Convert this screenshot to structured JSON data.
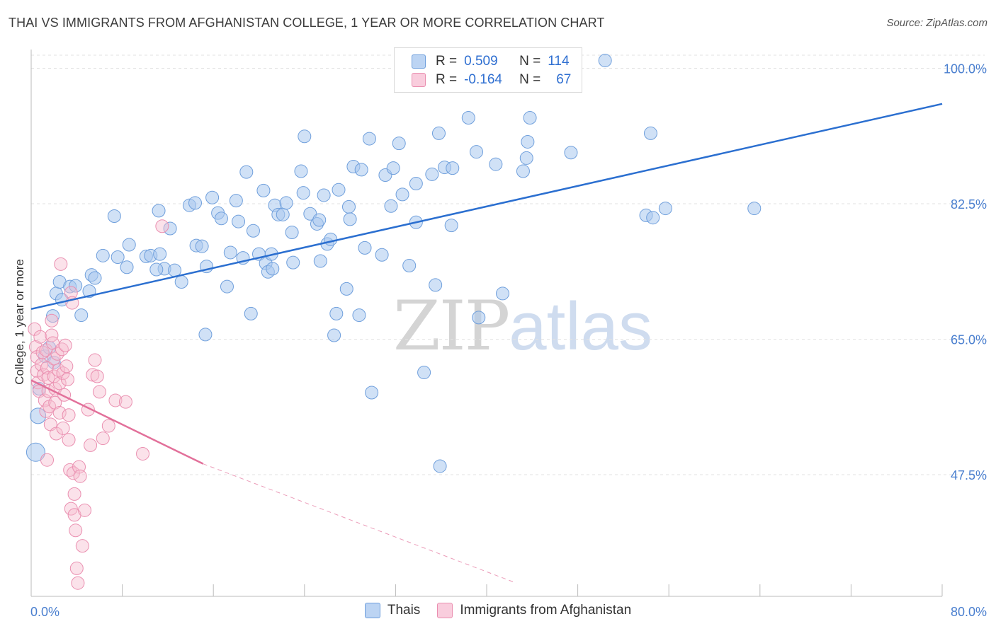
{
  "title": "THAI VS IMMIGRANTS FROM AFGHANISTAN COLLEGE, 1 YEAR OR MORE CORRELATION CHART",
  "source": "Source: ZipAtlas.com",
  "watermark": {
    "zip": "ZIP",
    "atlas": "atlas"
  },
  "legend_top": [
    {
      "r_label": "R =",
      "r_value": "0.509",
      "n_label": "N =",
      "n_value": "114"
    },
    {
      "r_label": "R =",
      "r_value": "-0.164",
      "n_label": "N =",
      "n_value": "67"
    }
  ],
  "legend_bottom": [
    "Thais",
    "Immigrants from Afghanistan"
  ],
  "colors": {
    "blue_fill": "#aac8ef",
    "blue_stroke": "#6f9fdc",
    "blue_line": "#2b6fd0",
    "pink_fill": "#f6bfd1",
    "pink_stroke": "#ea8fb0",
    "pink_line": "#e2709a",
    "tick_text": "#4a7fcf",
    "grid": "#e2e2e2"
  },
  "chart_data": {
    "type": "scatter",
    "title": "THAI VS IMMIGRANTS FROM AFGHANISTAN COLLEGE, 1 YEAR OR MORE CORRELATION CHART",
    "xlabel": "",
    "ylabel": "College, 1 year or more",
    "xlim": [
      0,
      80
    ],
    "ylim": [
      33.5,
      101.5
    ],
    "x_tick_labels": [
      "0.0%",
      "80.0%"
    ],
    "y_ticks": [
      47.5,
      65.0,
      82.5,
      100.0
    ],
    "y_tick_labels": [
      "47.5%",
      "65.0%",
      "82.5%",
      "100.0%"
    ],
    "grid": true,
    "series": [
      {
        "name": "Thais",
        "r": 0.509,
        "n": 114,
        "trend": {
          "x": [
            0,
            80
          ],
          "y": [
            68.9,
            95.4
          ],
          "style": "solid"
        },
        "points": [
          [
            0.4,
            50.4,
            13
          ],
          [
            0.6,
            55.1,
            11
          ],
          [
            0.7,
            58.6,
            9
          ],
          [
            1.2,
            62.8,
            9
          ],
          [
            1.6,
            63.9,
            9
          ],
          [
            2.0,
            62.0,
            9
          ],
          [
            1.9,
            68.0,
            9
          ],
          [
            2.2,
            70.9,
            9
          ],
          [
            2.5,
            72.4,
            9
          ],
          [
            2.7,
            70.1,
            9
          ],
          [
            4.4,
            68.1,
            9
          ],
          [
            3.4,
            71.8,
            9
          ],
          [
            3.9,
            71.9,
            9
          ],
          [
            5.1,
            71.2,
            9
          ],
          [
            5.3,
            73.3,
            9
          ],
          [
            5.6,
            72.9,
            9
          ],
          [
            6.3,
            75.8,
            9
          ],
          [
            7.6,
            75.6,
            9
          ],
          [
            8.4,
            74.3,
            9
          ],
          [
            8.6,
            77.2,
            9
          ],
          [
            7.3,
            80.9,
            9
          ],
          [
            10.1,
            75.7,
            9
          ],
          [
            10.5,
            75.8,
            9
          ],
          [
            11.3,
            76.0,
            9
          ],
          [
            11.7,
            74.1,
            9
          ],
          [
            11.2,
            81.6,
            9
          ],
          [
            12.6,
            73.9,
            9
          ],
          [
            11.0,
            74.0,
            9
          ],
          [
            12.2,
            79.3,
            9
          ],
          [
            13.2,
            72.4,
            9
          ],
          [
            13.9,
            82.3,
            9
          ],
          [
            14.4,
            82.6,
            9
          ],
          [
            14.5,
            77.1,
            9
          ],
          [
            15.0,
            77.0,
            9
          ],
          [
            15.4,
            74.4,
            9
          ],
          [
            15.3,
            65.6,
            9
          ],
          [
            15.9,
            83.3,
            9
          ],
          [
            16.4,
            81.3,
            9
          ],
          [
            16.7,
            80.6,
            9
          ],
          [
            17.2,
            71.8,
            9
          ],
          [
            17.5,
            76.2,
            9
          ],
          [
            18.0,
            82.9,
            9
          ],
          [
            18.2,
            80.2,
            9
          ],
          [
            18.6,
            75.5,
            9
          ],
          [
            18.9,
            86.6,
            9
          ],
          [
            19.5,
            79.0,
            9
          ],
          [
            19.3,
            68.3,
            9
          ],
          [
            20.0,
            76.0,
            9
          ],
          [
            20.4,
            84.2,
            9
          ],
          [
            20.6,
            74.8,
            9
          ],
          [
            20.8,
            73.7,
            9
          ],
          [
            21.2,
            74.1,
            9
          ],
          [
            21.1,
            76.0,
            9
          ],
          [
            21.4,
            82.3,
            9
          ],
          [
            21.7,
            81.1,
            9
          ],
          [
            22.1,
            81.1,
            9
          ],
          [
            22.4,
            82.6,
            9
          ],
          [
            22.9,
            78.8,
            9
          ],
          [
            23.0,
            74.9,
            9
          ],
          [
            23.7,
            86.7,
            9
          ],
          [
            23.9,
            83.9,
            9
          ],
          [
            24.5,
            81.2,
            9
          ],
          [
            25.1,
            79.9,
            9
          ],
          [
            25.4,
            75.1,
            9
          ],
          [
            25.7,
            83.6,
            9
          ],
          [
            26.0,
            77.3,
            9
          ],
          [
            26.3,
            77.9,
            9
          ],
          [
            26.8,
            68.3,
            9
          ],
          [
            27.0,
            84.3,
            9
          ],
          [
            27.7,
            71.5,
            9
          ],
          [
            27.9,
            82.1,
            9
          ],
          [
            28.0,
            80.5,
            9
          ],
          [
            28.3,
            87.3,
            9
          ],
          [
            29.0,
            86.9,
            9
          ],
          [
            29.3,
            76.8,
            9
          ],
          [
            29.7,
            90.9,
            9
          ],
          [
            29.9,
            58.1,
            9
          ],
          [
            31.1,
            86.2,
            9
          ],
          [
            30.8,
            75.9,
            9
          ],
          [
            31.6,
            82.2,
            9
          ],
          [
            31.8,
            87.1,
            9
          ],
          [
            32.3,
            90.3,
            9
          ],
          [
            32.6,
            83.7,
            9
          ],
          [
            33.8,
            85.1,
            9
          ],
          [
            33.2,
            74.5,
            9
          ],
          [
            34.5,
            60.7,
            9
          ],
          [
            35.2,
            86.3,
            9
          ],
          [
            35.5,
            72.0,
            9
          ],
          [
            35.8,
            91.6,
            9
          ],
          [
            35.9,
            48.6,
            9
          ],
          [
            36.3,
            87.2,
            9
          ],
          [
            36.9,
            79.7,
            9
          ],
          [
            37.0,
            87.1,
            9
          ],
          [
            38.4,
            93.6,
            9
          ],
          [
            39.1,
            89.2,
            9
          ],
          [
            39.3,
            67.8,
            9
          ],
          [
            40.8,
            87.6,
            9
          ],
          [
            41.4,
            70.9,
            9
          ],
          [
            43.5,
            88.4,
            9
          ],
          [
            43.2,
            86.7,
            9
          ],
          [
            43.6,
            90.5,
            9
          ],
          [
            43.8,
            93.6,
            9
          ],
          [
            47.4,
            89.1,
            9
          ],
          [
            50.4,
            101.0,
            9
          ],
          [
            54.0,
            81.0,
            9
          ],
          [
            54.4,
            91.6,
            9
          ],
          [
            54.6,
            80.7,
            9
          ],
          [
            55.7,
            81.9,
            9
          ],
          [
            63.5,
            81.9,
            9
          ],
          [
            33.8,
            80.1,
            9
          ],
          [
            24.0,
            91.2,
            9
          ],
          [
            25.3,
            80.4,
            9
          ],
          [
            26.6,
            65.5,
            9
          ],
          [
            28.8,
            68.1,
            9
          ]
        ]
      },
      {
        "name": "Immigrants from Afghanistan",
        "r": -0.164,
        "n": 67,
        "trend": {
          "x": [
            0,
            15.1
          ],
          "y": [
            59.7,
            48.9
          ],
          "dashed_extension_to": [
            42.6,
            33.5
          ],
          "style": "solid+dashed"
        },
        "points": [
          [
            0.3,
            66.3,
            9
          ],
          [
            0.4,
            64.0,
            9
          ],
          [
            0.5,
            62.7,
            9
          ],
          [
            0.5,
            60.9,
            9
          ],
          [
            0.6,
            59.4,
            9
          ],
          [
            0.7,
            58.3,
            9
          ],
          [
            0.8,
            65.3,
            9
          ],
          [
            0.9,
            61.7,
            9
          ],
          [
            1.0,
            63.3,
            9
          ],
          [
            1.1,
            60.4,
            9
          ],
          [
            1.2,
            57.1,
            9
          ],
          [
            1.3,
            55.7,
            9
          ],
          [
            1.3,
            63.6,
            9
          ],
          [
            1.4,
            61.3,
            9
          ],
          [
            1.5,
            60.0,
            9
          ],
          [
            1.5,
            58.3,
            9
          ],
          [
            1.6,
            56.3,
            9
          ],
          [
            1.7,
            54.0,
            9
          ],
          [
            1.8,
            65.5,
            9
          ],
          [
            1.8,
            67.4,
            9
          ],
          [
            1.9,
            64.5,
            9
          ],
          [
            2.0,
            62.5,
            9
          ],
          [
            2.0,
            60.2,
            9
          ],
          [
            2.1,
            58.6,
            9
          ],
          [
            2.1,
            56.8,
            9
          ],
          [
            2.2,
            52.8,
            9
          ],
          [
            2.3,
            63.1,
            9
          ],
          [
            2.4,
            61.0,
            9
          ],
          [
            2.5,
            59.3,
            9
          ],
          [
            2.5,
            55.5,
            9
          ],
          [
            2.6,
            74.7,
            9
          ],
          [
            2.7,
            63.7,
            9
          ],
          [
            2.8,
            60.6,
            9
          ],
          [
            2.9,
            57.8,
            9
          ],
          [
            3.0,
            64.2,
            9
          ],
          [
            3.1,
            61.5,
            9
          ],
          [
            3.2,
            59.8,
            9
          ],
          [
            3.3,
            55.2,
            9
          ],
          [
            3.3,
            52.0,
            9
          ],
          [
            3.4,
            48.1,
            9
          ],
          [
            3.5,
            71.0,
            9
          ],
          [
            3.5,
            43.1,
            9
          ],
          [
            3.6,
            69.7,
            9
          ],
          [
            3.7,
            47.7,
            9
          ],
          [
            3.8,
            45.0,
            9
          ],
          [
            3.8,
            42.3,
            9
          ],
          [
            3.9,
            40.3,
            9
          ],
          [
            4.0,
            35.4,
            9
          ],
          [
            4.1,
            33.5,
            9
          ],
          [
            4.2,
            48.5,
            9
          ],
          [
            4.3,
            47.3,
            9
          ],
          [
            4.5,
            38.3,
            9
          ],
          [
            4.7,
            42.9,
            9
          ],
          [
            5.0,
            55.9,
            9
          ],
          [
            5.2,
            51.3,
            9
          ],
          [
            5.4,
            60.4,
            9
          ],
          [
            5.6,
            62.3,
            9
          ],
          [
            5.8,
            60.2,
            9
          ],
          [
            6.0,
            58.2,
            9
          ],
          [
            6.3,
            52.2,
            9
          ],
          [
            6.8,
            53.8,
            9
          ],
          [
            7.4,
            57.1,
            9
          ],
          [
            8.3,
            56.9,
            9
          ],
          [
            9.8,
            50.2,
            9
          ],
          [
            11.5,
            79.6,
            9
          ],
          [
            1.4,
            49.4,
            9
          ],
          [
            2.8,
            53.5,
            9
          ]
        ]
      }
    ]
  }
}
